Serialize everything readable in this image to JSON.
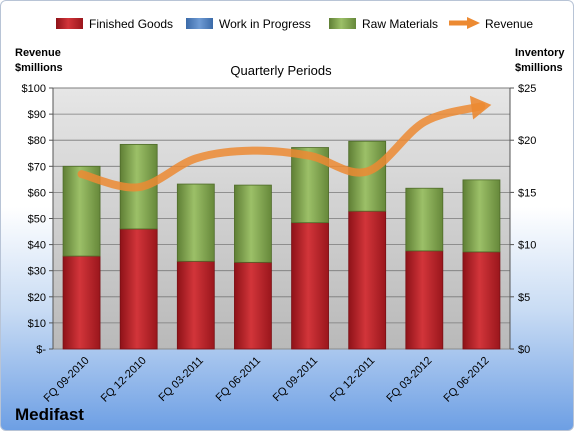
{
  "company": "Medifast",
  "chart_data": {
    "type": "bar",
    "title": "Quarterly Periods",
    "categories": [
      "FQ 09-2010",
      "FQ 12-2010",
      "FQ 03-2011",
      "FQ 06-2011",
      "FQ 09-2011",
      "FQ 12-2011",
      "FQ 03-2012",
      "FQ 06-2012"
    ],
    "stacked": true,
    "ylabel_left": [
      "Revenue",
      "$millions"
    ],
    "ylabel_right": [
      "Inventory",
      "$millions"
    ],
    "ylim_left": [
      0,
      100
    ],
    "ylim_right": [
      0,
      25
    ],
    "left_ticks": [
      "$-",
      "$10",
      "$20",
      "$30",
      "$40",
      "$50",
      "$60",
      "$70",
      "$80",
      "$90",
      "$100"
    ],
    "right_ticks": [
      "$0",
      "$5",
      "$10",
      "$15",
      "$20",
      "$25"
    ],
    "grid": true,
    "legend_position": "top",
    "series": [
      {
        "name": "Finished Goods",
        "axis": "right",
        "color": "#c0262d",
        "values": [
          8.9,
          11.5,
          8.4,
          8.3,
          12.1,
          13.2,
          9.4,
          9.3
        ]
      },
      {
        "name": "Work in Progress",
        "axis": "right",
        "color": "#4f81bd",
        "values": [
          0,
          0,
          0,
          0,
          0,
          0,
          0,
          0
        ]
      },
      {
        "name": "Raw Materials",
        "axis": "right",
        "color": "#8cb25a",
        "values": [
          8.6,
          8.1,
          7.4,
          7.4,
          7.2,
          6.7,
          6.0,
          6.9
        ]
      },
      {
        "name": "Revenue",
        "axis": "left",
        "type": "line",
        "color": "#ec8a32",
        "values": [
          67,
          62,
          73,
          76,
          74,
          68,
          87,
          93
        ]
      }
    ]
  }
}
